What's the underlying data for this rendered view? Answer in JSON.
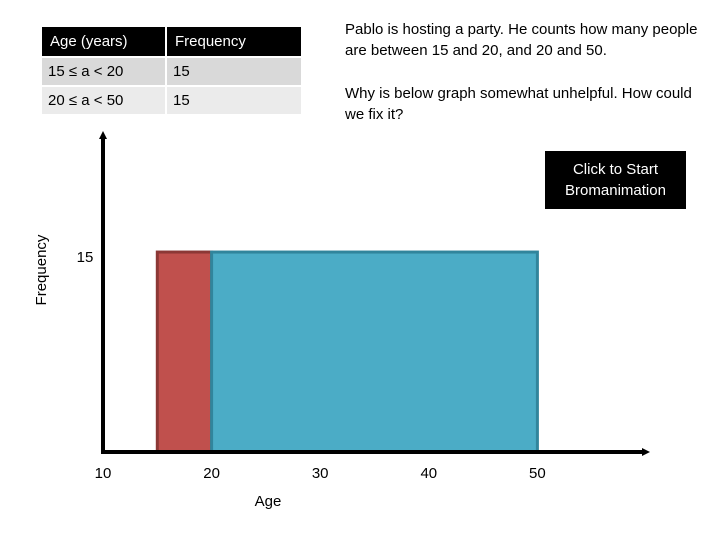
{
  "table": {
    "headers": [
      "Age (years)",
      "Frequency"
    ],
    "rows": [
      [
        "15 ≤ a < 20",
        "15"
      ],
      [
        "20 ≤ a < 50",
        "15"
      ]
    ]
  },
  "prompt": "Pablo is hosting a party. He counts how many people are between 15 and 20, and 20 and 50.",
  "question": "Why is below graph somewhat unhelpful. How could we fix it?",
  "start_button": {
    "line1": "Click to Start",
    "line2": "Bromanimation"
  },
  "chart_data": {
    "type": "bar",
    "xlabel": "Age",
    "ylabel": "Frequency",
    "x_ticks": [
      10,
      20,
      30,
      40,
      50
    ],
    "y_ticks": [
      15
    ],
    "bars": [
      {
        "x_start": 15,
        "x_end": 20,
        "value": 15,
        "color": "#c0504d",
        "border": "#8c3836"
      },
      {
        "x_start": 20,
        "x_end": 50,
        "value": 15,
        "color": "#4bacc6",
        "border": "#31859c"
      }
    ]
  }
}
